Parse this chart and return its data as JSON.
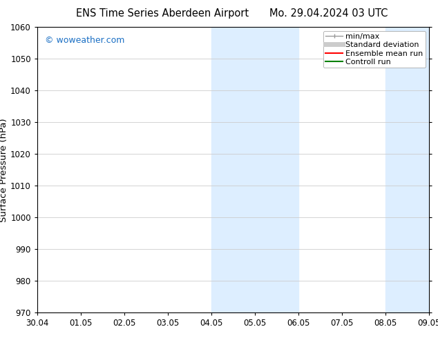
{
  "title_left": "ENS Time Series Aberdeen Airport",
  "title_right": "Mo. 29.04.2024 03 UTC",
  "ylabel": "Surface Pressure (hPa)",
  "ylim": [
    970,
    1060
  ],
  "yticks": [
    970,
    980,
    990,
    1000,
    1010,
    1020,
    1030,
    1040,
    1050,
    1060
  ],
  "xtick_labels": [
    "30.04",
    "01.05",
    "02.05",
    "03.05",
    "04.05",
    "05.05",
    "06.05",
    "07.05",
    "08.05",
    "09.05"
  ],
  "watermark": "© woweather.com",
  "watermark_color": "#1a6fc4",
  "shaded_regions": [
    {
      "xstart": 4.0,
      "xend": 5.5,
      "color": "#ddeeff"
    },
    {
      "xstart": 5.5,
      "xend": 6.0,
      "color": "#ddeeff"
    },
    {
      "xstart": 8.0,
      "xend": 8.5,
      "color": "#ddeeff"
    },
    {
      "xstart": 8.5,
      "xend": 9.0,
      "color": "#ddeeff"
    }
  ],
  "legend_entries": [
    {
      "label": "min/max",
      "color": "#999999",
      "lw": 1.0
    },
    {
      "label": "Standard deviation",
      "color": "#cccccc",
      "lw": 5
    },
    {
      "label": "Ensemble mean run",
      "color": "#ff0000",
      "lw": 1.5
    },
    {
      "label": "Controll run",
      "color": "#008000",
      "lw": 1.5
    }
  ],
  "background_color": "#ffffff",
  "plot_bg_color": "#ffffff",
  "grid_color": "#cccccc",
  "title_fontsize": 10.5,
  "tick_fontsize": 8.5,
  "ylabel_fontsize": 9.5,
  "legend_fontsize": 8.0
}
